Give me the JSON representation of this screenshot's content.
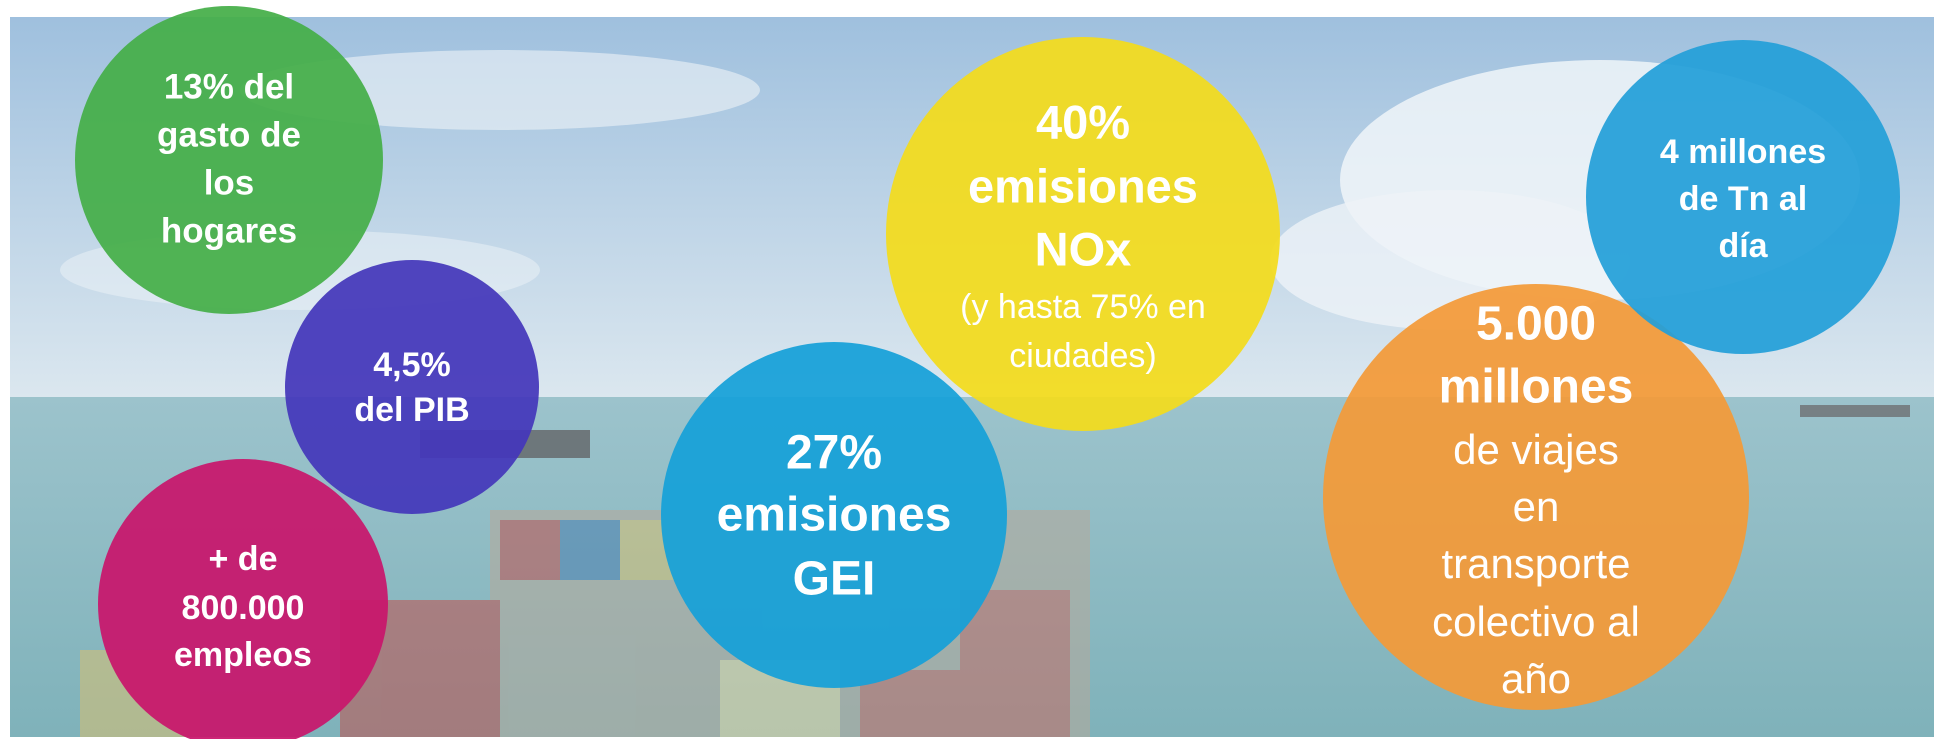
{
  "bubbles": [
    {
      "lines": [
        "13% del",
        "gasto de",
        "los",
        "hogares"
      ]
    },
    {
      "lines": [
        "4,5%",
        "del PIB"
      ]
    },
    {
      "lines": [
        "+ de",
        "800.000",
        "empleos"
      ]
    },
    {
      "lines": [
        "27%",
        "emisiones",
        "GEI"
      ]
    },
    {
      "lines": [
        "40%",
        "emisiones",
        "NOx",
        "(y hasta 75% en",
        "ciudades)"
      ]
    },
    {
      "lines": [
        "5.000",
        "millones",
        "de viajes",
        "en",
        "transporte",
        "colectivo al",
        "año"
      ]
    },
    {
      "lines": [
        "4 millones",
        "de Tn al",
        "día"
      ]
    }
  ]
}
